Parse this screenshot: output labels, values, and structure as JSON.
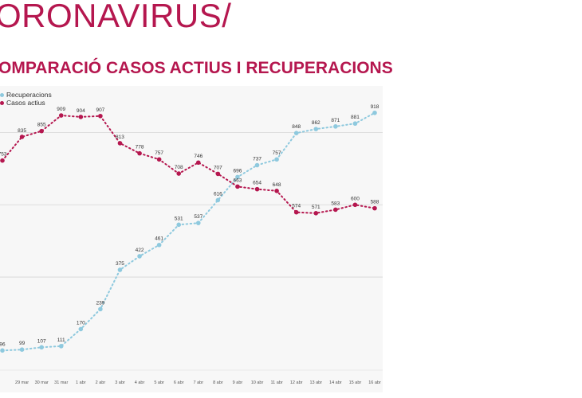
{
  "header": {
    "title": "ORONAVIRUS/",
    "subtitle": "OMPARACIÓ CASOS ACTIUS I RECUPERACIONS"
  },
  "colors": {
    "title": "#b5174f",
    "active_series": "#b5174f",
    "recovered_series": "#8ec9de",
    "gridline": "#d6d6d6",
    "panel": "#f7f7f7"
  },
  "chart_data": {
    "type": "line",
    "title": "OMPARACIÓ CASOS ACTIUS I RECUPERACIONS",
    "categories": [
      "",
      "29 mar",
      "30 mar",
      "31 mar",
      "1 abr",
      "2 abr",
      "3 abr",
      "4 abr",
      "5 abr",
      "6 abr",
      "7 abr",
      "8 abr",
      "9 abr",
      "10 abr",
      "11 abr",
      "12 abr",
      "13 abr",
      "14 abr",
      "15 abr",
      "16 abr"
    ],
    "series": [
      {
        "name": "Recuperacions",
        "color": "#8ec9de",
        "values": [
          96,
          99,
          107,
          111,
          170,
          239,
          375,
          422,
          461,
          531,
          537,
          616,
          696,
          737,
          757,
          848,
          862,
          871,
          881,
          918
        ],
        "labels": [
          "96",
          "99",
          "107",
          "111",
          "170",
          "239",
          "375",
          "422",
          "461",
          "531",
          "537",
          "616",
          "696",
          "737",
          "757",
          "848",
          "862",
          "871",
          "881",
          "918"
        ]
      },
      {
        "name": "Casos actius",
        "color": "#b5174f",
        "values": [
          753,
          835,
          855,
          909,
          904,
          907,
          813,
          778,
          757,
          708,
          746,
          707,
          663,
          654,
          648,
          574,
          571,
          583,
          600,
          588
        ],
        "labels": [
          "753",
          "835",
          "855",
          "909",
          "904",
          "907",
          "813",
          "778",
          "757",
          "708",
          "746",
          "707",
          "663",
          "654",
          "648",
          "574",
          "571",
          "583",
          "600",
          "588"
        ]
      }
    ],
    "ylim": [
      50,
      1000
    ],
    "gridlines": [
      350,
      600,
      850
    ],
    "grid": true,
    "legend_position": "top-left",
    "xlabel": "",
    "ylabel": ""
  }
}
